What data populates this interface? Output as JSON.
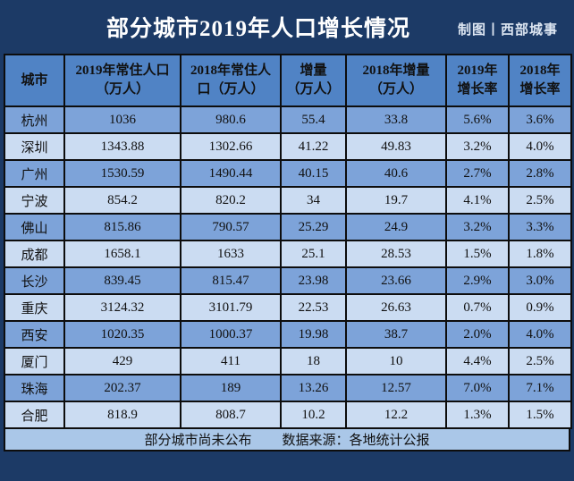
{
  "title": {
    "text": "部分城市2019年人口增长情况",
    "credit": "制图丨西部城事"
  },
  "chart_data": {
    "type": "table",
    "title": "部分城市2019年人口增长情况",
    "columns": [
      "城市",
      "2019年常住人口\n（万人）",
      "2018年常住人\n口（万人）",
      "增量\n（万人）",
      "2018年增量\n（万人）",
      "2019年\n增长率",
      "2018年\n增长率"
    ],
    "rows": [
      [
        "杭州",
        "1036",
        "980.6",
        "55.4",
        "33.8",
        "5.6%",
        "3.6%"
      ],
      [
        "深圳",
        "1343.88",
        "1302.66",
        "41.22",
        "49.83",
        "3.2%",
        "4.0%"
      ],
      [
        "广州",
        "1530.59",
        "1490.44",
        "40.15",
        "40.6",
        "2.7%",
        "2.8%"
      ],
      [
        "宁波",
        "854.2",
        "820.2",
        "34",
        "19.7",
        "4.1%",
        "2.5%"
      ],
      [
        "佛山",
        "815.86",
        "790.57",
        "25.29",
        "24.9",
        "3.2%",
        "3.3%"
      ],
      [
        "成都",
        "1658.1",
        "1633",
        "25.1",
        "28.53",
        "1.5%",
        "1.8%"
      ],
      [
        "长沙",
        "839.45",
        "815.47",
        "23.98",
        "23.66",
        "2.9%",
        "3.0%"
      ],
      [
        "重庆",
        "3124.32",
        "3101.79",
        "22.53",
        "26.63",
        "0.7%",
        "0.9%"
      ],
      [
        "西安",
        "1020.35",
        "1000.37",
        "19.98",
        "38.7",
        "2.0%",
        "4.0%"
      ],
      [
        "厦门",
        "429",
        "411",
        "18",
        "10",
        "4.4%",
        "2.5%"
      ],
      [
        "珠海",
        "202.37",
        "189",
        "13.26",
        "12.57",
        "7.0%",
        "7.1%"
      ],
      [
        "合肥",
        "818.9",
        "808.7",
        "10.2",
        "12.2",
        "1.3%",
        "1.5%"
      ]
    ]
  },
  "footer": {
    "note": "部分城市尚未公布",
    "source": "数据来源：各地统计公报"
  },
  "colors": {
    "background_navy": "#1C3A66",
    "header_blue": "#5083C5",
    "row_dark_blue": "#7DA3D9",
    "row_light_blue": "#CBDCF2",
    "footer_blue": "#AAC7E8",
    "border_black": "#0d0d0d",
    "title_white": "#FFFFFF"
  }
}
